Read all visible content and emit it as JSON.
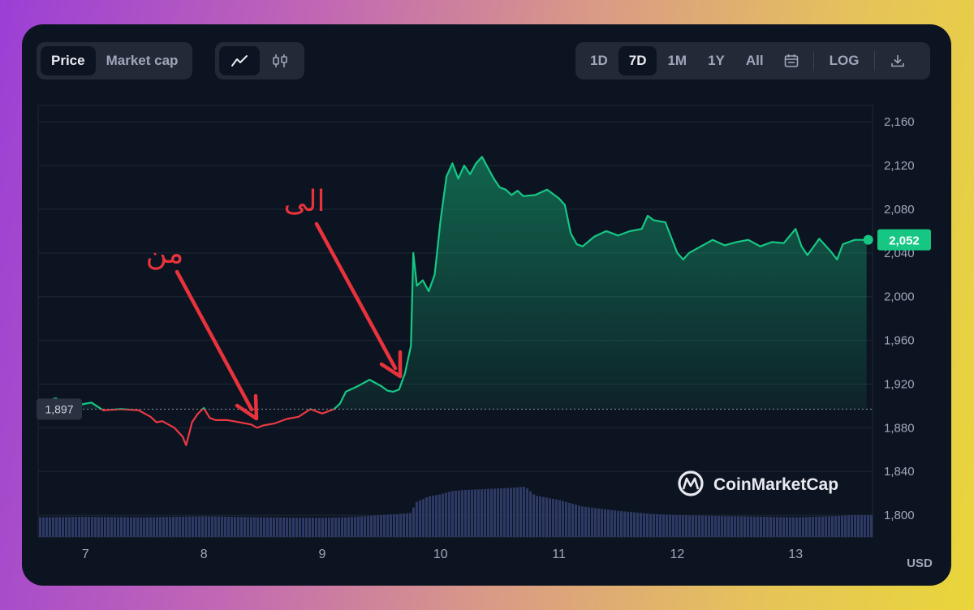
{
  "toolbar": {
    "metric_tabs": [
      {
        "label": "Price",
        "active": true
      },
      {
        "label": "Market cap",
        "active": false
      }
    ],
    "chart_type_icons": [
      "line-chart-icon",
      "candlestick-icon"
    ],
    "ranges": [
      {
        "label": "1D",
        "active": false
      },
      {
        "label": "7D",
        "active": true
      },
      {
        "label": "1M",
        "active": false
      },
      {
        "label": "1Y",
        "active": false
      },
      {
        "label": "All",
        "active": false
      }
    ],
    "calendar_icon": "calendar-icon",
    "log_label": "LOG",
    "download_icon": "download-icon"
  },
  "annotations": {
    "from_label": "من",
    "to_label": "الى"
  },
  "watermark": "CoinMarketCap",
  "colors": {
    "up": "#16c784",
    "down": "#ea3943",
    "annotation": "#e8333c",
    "background": "#0d1421",
    "volume": "#2e3a66"
  },
  "chart_data": {
    "type": "area",
    "currency_label": "USD",
    "reference_price": 1897,
    "reference_label": "1,897",
    "current_price": 2052,
    "current_label": "2,052",
    "ylim": [
      1780,
      2175
    ],
    "y_ticks": [
      {
        "value": 2160,
        "label": "2,160"
      },
      {
        "value": 2120,
        "label": "2,120"
      },
      {
        "value": 2080,
        "label": "2,080"
      },
      {
        "value": 2040,
        "label": "2,040"
      },
      {
        "value": 2000,
        "label": "2,000"
      },
      {
        "value": 1960,
        "label": "1,960"
      },
      {
        "value": 1920,
        "label": "1,920"
      },
      {
        "value": 1880,
        "label": "1,880"
      },
      {
        "value": 1840,
        "label": "1,840"
      },
      {
        "value": 1800,
        "label": "1,800"
      }
    ],
    "x_ticks": [
      "7",
      "8",
      "9",
      "10",
      "11",
      "12",
      "13"
    ],
    "xlim": [
      6.6,
      13.65
    ],
    "price_series": {
      "x": [
        6.6,
        6.75,
        6.85,
        6.95,
        7.05,
        7.15,
        7.3,
        7.45,
        7.55,
        7.6,
        7.65,
        7.75,
        7.82,
        7.85,
        7.9,
        7.95,
        8.0,
        8.05,
        8.1,
        8.2,
        8.3,
        8.4,
        8.45,
        8.5,
        8.6,
        8.7,
        8.8,
        8.9,
        9.0,
        9.1,
        9.15,
        9.2,
        9.3,
        9.4,
        9.5,
        9.55,
        9.6,
        9.65,
        9.7,
        9.75,
        9.77,
        9.8,
        9.85,
        9.9,
        9.95,
        10.0,
        10.05,
        10.1,
        10.15,
        10.2,
        10.25,
        10.3,
        10.35,
        10.4,
        10.45,
        10.5,
        10.55,
        10.6,
        10.65,
        10.7,
        10.8,
        10.9,
        11.0,
        11.05,
        11.1,
        11.15,
        11.2,
        11.3,
        11.4,
        11.5,
        11.6,
        11.7,
        11.75,
        11.8,
        11.9,
        12.0,
        12.05,
        12.1,
        12.2,
        12.3,
        12.4,
        12.5,
        12.6,
        12.7,
        12.8,
        12.9,
        13.0,
        13.05,
        13.1,
        13.2,
        13.3,
        13.35,
        13.4,
        13.5,
        13.6
      ],
      "y": [
        1902,
        1907,
        1898,
        1901,
        1903,
        1896,
        1897,
        1896,
        1890,
        1885,
        1886,
        1880,
        1872,
        1864,
        1885,
        1893,
        1898,
        1889,
        1887,
        1887,
        1885,
        1883,
        1880,
        1882,
        1884,
        1888,
        1890,
        1897,
        1893,
        1897,
        1902,
        1913,
        1918,
        1924,
        1918,
        1914,
        1913,
        1915,
        1930,
        1955,
        2040,
        2010,
        2015,
        2005,
        2020,
        2070,
        2110,
        2122,
        2108,
        2120,
        2112,
        2122,
        2128,
        2118,
        2108,
        2100,
        2098,
        2093,
        2097,
        2092,
        2093,
        2098,
        2090,
        2084,
        2058,
        2048,
        2046,
        2055,
        2060,
        2056,
        2060,
        2062,
        2074,
        2070,
        2068,
        2040,
        2034,
        2040,
        2046,
        2052,
        2047,
        2050,
        2052,
        2046,
        2050,
        2049,
        2062,
        2046,
        2038,
        2053,
        2041,
        2034,
        2048,
        2052,
        2052
      ]
    },
    "volume_series": {
      "x": [
        6.6,
        7.0,
        7.5,
        8.0,
        8.5,
        9.0,
        9.2,
        9.5,
        9.65,
        9.75,
        9.8,
        9.9,
        10.0,
        10.1,
        10.2,
        10.4,
        10.6,
        10.72,
        10.8,
        11.0,
        11.2,
        11.5,
        11.8,
        12.0,
        12.5,
        13.0,
        13.3,
        13.5,
        13.6
      ],
      "y": [
        1798,
        1798.5,
        1798,
        1799,
        1798,
        1797.5,
        1798,
        1800,
        1801,
        1802,
        1812,
        1817,
        1819,
        1822,
        1823,
        1824,
        1825,
        1826,
        1818,
        1814,
        1808,
        1804,
        1801,
        1800,
        1799,
        1798,
        1799,
        1800,
        1800
      ]
    }
  }
}
